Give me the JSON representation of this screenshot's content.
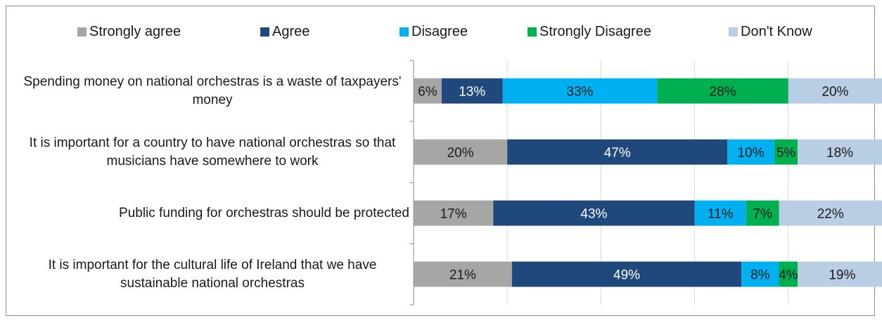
{
  "chart_data": {
    "type": "bar",
    "orientation": "horizontal",
    "stacked": true,
    "categories": [
      "Spending money on national orchestras is a waste of taxpayers' money",
      "It is important for a country to have national orchestras so that musicians have somewhere to work",
      "Public funding for orchestras should be protected",
      "It is important for the cultural life of Ireland that we have sustainable national orchestras"
    ],
    "series": [
      {
        "name": "Strongly agree",
        "color": "#a6a6a6",
        "values": [
          6,
          20,
          17,
          21
        ],
        "labels": [
          "6%",
          "20%",
          "17%",
          "21%"
        ]
      },
      {
        "name": "Agree",
        "color": "#1f497d",
        "values": [
          13,
          47,
          43,
          49
        ],
        "labels": [
          "13%",
          "47%",
          "43%",
          "49%"
        ]
      },
      {
        "name": "Disagree",
        "color": "#00b0f0",
        "values": [
          33,
          10,
          11,
          8
        ],
        "labels": [
          "33%",
          "10%",
          "11%",
          "8%"
        ]
      },
      {
        "name": "Strongly Disagree",
        "color": "#00b050",
        "values": [
          28,
          5,
          7,
          4
        ],
        "labels": [
          "28%",
          "5%",
          "7%",
          "4%"
        ]
      },
      {
        "name": "Don't Know",
        "color": "#b9cde5",
        "values": [
          20,
          18,
          22,
          19
        ],
        "labels": [
          "20%",
          "18%",
          "22%",
          "19%"
        ]
      }
    ],
    "xlim": [
      0,
      100
    ],
    "grid": true,
    "legend_position": "top"
  }
}
